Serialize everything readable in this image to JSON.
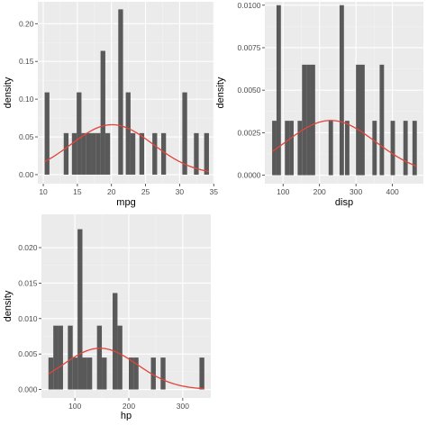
{
  "colors": {
    "panel_background": "#ebebeb",
    "grid_major": "#ffffff",
    "grid_minor": "#f3f3f3",
    "bar_fill": "#595959",
    "density_curve": "#e0453a",
    "tick_text": "#4d4d4d"
  },
  "chart_data": [
    {
      "id": "mpg",
      "type": "bar",
      "subtype": "histogram-with-normal-density-curve",
      "xlabel": "mpg",
      "ylabel": "density",
      "xlim": [
        9.2,
        35.1
      ],
      "ylim": [
        -0.012,
        0.229
      ],
      "x_ticks": [
        10,
        15,
        20,
        25,
        30,
        35
      ],
      "x_tick_labels": [
        "10",
        "15",
        "20",
        "25",
        "30",
        "35"
      ],
      "y_ticks": [
        0,
        0.05,
        0.1,
        0.15,
        0.2
      ],
      "y_tick_labels": [
        "0.00",
        "0.05",
        "0.10",
        "0.15",
        "0.20"
      ],
      "bins": [
        {
          "x0": 10.2,
          "x1": 10.9,
          "density": 0.109
        },
        {
          "x0": 13.0,
          "x1": 13.7,
          "density": 0.055
        },
        {
          "x0": 14.2,
          "x1": 14.9,
          "density": 0.055
        },
        {
          "x0": 14.9,
          "x1": 15.6,
          "density": 0.109
        },
        {
          "x0": 15.6,
          "x1": 16.3,
          "density": 0.055
        },
        {
          "x0": 16.3,
          "x1": 17.0,
          "density": 0.055
        },
        {
          "x0": 17.0,
          "x1": 17.7,
          "density": 0.055
        },
        {
          "x0": 17.7,
          "x1": 18.4,
          "density": 0.055
        },
        {
          "x0": 18.4,
          "x1": 19.1,
          "density": 0.164
        },
        {
          "x0": 19.1,
          "x1": 19.8,
          "density": 0.055
        },
        {
          "x0": 21.0,
          "x1": 21.7,
          "density": 0.219
        },
        {
          "x0": 22.1,
          "x1": 22.8,
          "density": 0.109
        },
        {
          "x0": 22.8,
          "x1": 23.5,
          "density": 0.055
        },
        {
          "x0": 24.1,
          "x1": 24.8,
          "density": 0.055
        },
        {
          "x0": 26.0,
          "x1": 26.7,
          "density": 0.055
        },
        {
          "x0": 27.3,
          "x1": 28.0,
          "density": 0.055
        },
        {
          "x0": 30.4,
          "x1": 31.1,
          "density": 0.109
        },
        {
          "x0": 32.1,
          "x1": 32.8,
          "density": 0.055
        },
        {
          "x0": 33.6,
          "x1": 34.3,
          "density": 0.055
        }
      ],
      "density_curve": {
        "distribution": "normal",
        "mean": 20.09,
        "sd": 6.03
      }
    },
    {
      "id": "disp",
      "type": "bar",
      "subtype": "histogram-with-normal-density-curve",
      "xlabel": "disp",
      "ylabel": "density",
      "xlim": [
        50,
        485
      ],
      "ylim": [
        -0.0005,
        0.0102
      ],
      "x_ticks": [
        100,
        200,
        300,
        400
      ],
      "x_tick_labels": [
        "100",
        "200",
        "300",
        "400"
      ],
      "y_ticks": [
        0,
        0.0025,
        0.005,
        0.0075,
        0.01
      ],
      "y_tick_labels": [
        "0.0000",
        "0.0025",
        "0.0050",
        "0.0075",
        "0.0100"
      ],
      "bins": [
        {
          "x0": 70,
          "x1": 82,
          "density": 0.0032
        },
        {
          "x0": 82,
          "x1": 94,
          "density": 0.01
        },
        {
          "x0": 105,
          "x1": 117,
          "density": 0.0032
        },
        {
          "x0": 117,
          "x1": 129,
          "density": 0.0032
        },
        {
          "x0": 140,
          "x1": 152,
          "density": 0.0032
        },
        {
          "x0": 152,
          "x1": 164,
          "density": 0.0065
        },
        {
          "x0": 164,
          "x1": 176,
          "density": 0.0065
        },
        {
          "x0": 176,
          "x1": 188,
          "density": 0.0065
        },
        {
          "x0": 225,
          "x1": 237,
          "density": 0.0032
        },
        {
          "x0": 255,
          "x1": 267,
          "density": 0.01
        },
        {
          "x0": 270,
          "x1": 282,
          "density": 0.0032
        },
        {
          "x0": 300,
          "x1": 312,
          "density": 0.0065
        },
        {
          "x0": 312,
          "x1": 324,
          "density": 0.0065
        },
        {
          "x0": 345,
          "x1": 357,
          "density": 0.0032
        },
        {
          "x0": 365,
          "x1": 377,
          "density": 0.0065
        },
        {
          "x0": 395,
          "x1": 407,
          "density": 0.0032
        },
        {
          "x0": 430,
          "x1": 442,
          "density": 0.0032
        },
        {
          "x0": 455,
          "x1": 467,
          "density": 0.0032
        }
      ],
      "density_curve": {
        "distribution": "normal",
        "mean": 230.7,
        "sd": 123.9
      }
    },
    {
      "id": "hp",
      "type": "bar",
      "subtype": "histogram-with-normal-density-curve",
      "xlabel": "hp",
      "ylabel": "density",
      "xlim": [
        38,
        352
      ],
      "ylim": [
        -0.0012,
        0.0247
      ],
      "x_ticks": [
        100,
        200,
        300
      ],
      "x_tick_labels": [
        "100",
        "200",
        "300"
      ],
      "y_ticks": [
        0,
        0.005,
        0.01,
        0.015,
        0.02
      ],
      "y_tick_labels": [
        "0.000",
        "0.005",
        "0.010",
        "0.015",
        "0.020"
      ],
      "bins": [
        {
          "x0": 51,
          "x1": 60,
          "density": 0.0045
        },
        {
          "x0": 60,
          "x1": 69,
          "density": 0.009
        },
        {
          "x0": 69,
          "x1": 78,
          "density": 0.009
        },
        {
          "x0": 87,
          "x1": 96,
          "density": 0.009
        },
        {
          "x0": 96,
          "x1": 105,
          "density": 0.0045
        },
        {
          "x0": 105,
          "x1": 114,
          "density": 0.0226
        },
        {
          "x0": 114,
          "x1": 123,
          "density": 0.0045
        },
        {
          "x0": 123,
          "x1": 132,
          "density": 0.0045
        },
        {
          "x0": 141,
          "x1": 150,
          "density": 0.009
        },
        {
          "x0": 150,
          "x1": 159,
          "density": 0.0045
        },
        {
          "x0": 170,
          "x1": 179,
          "density": 0.0136
        },
        {
          "x0": 179,
          "x1": 188,
          "density": 0.009
        },
        {
          "x0": 200,
          "x1": 209,
          "density": 0.0045
        },
        {
          "x0": 209,
          "x1": 218,
          "density": 0.0045
        },
        {
          "x0": 241,
          "x1": 250,
          "density": 0.0045
        },
        {
          "x0": 259,
          "x1": 268,
          "density": 0.0045
        },
        {
          "x0": 331,
          "x1": 340,
          "density": 0.0045
        }
      ],
      "density_curve": {
        "distribution": "normal",
        "mean": 146.7,
        "sd": 68.6
      }
    }
  ]
}
